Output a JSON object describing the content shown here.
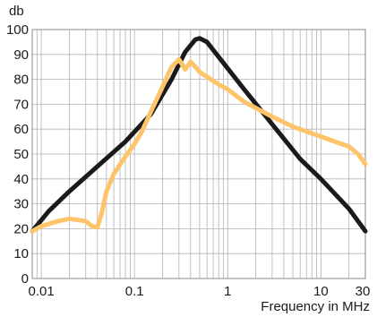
{
  "chart_data": {
    "type": "line",
    "title": "",
    "ylabel": "db",
    "xlabel": "Frequency in MHz",
    "xscale": "log",
    "xlim": [
      0.008,
      30
    ],
    "ylim": [
      0,
      100
    ],
    "x_ticks": [
      0.01,
      0.1,
      1,
      10,
      30
    ],
    "x_tick_labels": [
      "0.01",
      "0.1",
      "1",
      "10",
      "30"
    ],
    "y_ticks": [
      0,
      10,
      20,
      30,
      40,
      50,
      60,
      70,
      80,
      90,
      100
    ],
    "y_tick_labels": [
      "0",
      "10",
      "20",
      "30",
      "40",
      "50",
      "60",
      "70",
      "80",
      "90",
      "100"
    ],
    "grid": true,
    "legend": "none",
    "series": [
      {
        "color": "#1a1a1a",
        "x": [
          0.008,
          0.012,
          0.02,
          0.04,
          0.08,
          0.15,
          0.25,
          0.35,
          0.45,
          0.5,
          0.6,
          0.8,
          1.5,
          3,
          6,
          10,
          20,
          30
        ],
        "y": [
          19,
          27,
          35,
          45,
          55,
          66,
          80,
          91,
          96,
          96.5,
          95,
          89,
          76,
          62,
          48,
          40,
          28,
          19
        ]
      },
      {
        "color": "#fdc46a",
        "x": [
          0.008,
          0.01,
          0.015,
          0.02,
          0.025,
          0.03,
          0.035,
          0.04,
          0.045,
          0.05,
          0.06,
          0.08,
          0.1,
          0.12,
          0.15,
          0.2,
          0.25,
          0.3,
          0.35,
          0.4,
          0.45,
          0.5,
          0.6,
          0.8,
          1,
          1.5,
          2,
          3,
          5,
          10,
          20,
          25,
          30
        ],
        "y": [
          19,
          21,
          23,
          24,
          23.5,
          23,
          21,
          20.5,
          27,
          35,
          42,
          49,
          54,
          59,
          67,
          77,
          85,
          88,
          84,
          87,
          85,
          83,
          81,
          78,
          76,
          71,
          68.5,
          65,
          61,
          57,
          53,
          50,
          46
        ]
      }
    ]
  }
}
